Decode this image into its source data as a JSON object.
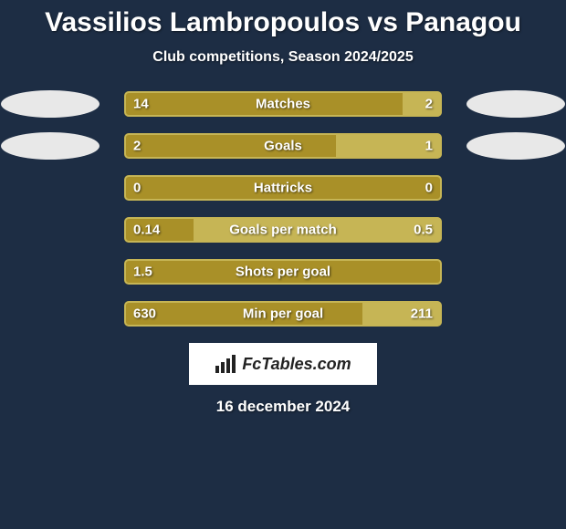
{
  "title": "Vassilios Lambropoulos vs Panagou",
  "subtitle": "Club competitions, Season 2024/2025",
  "date": "16 december 2024",
  "branding": "FcTables.com",
  "colors": {
    "background": "#1d2d44",
    "left_bar": "#a99028",
    "right_bar": "#c6b555",
    "left_ellipse": "#e8e8e8",
    "right_ellipse": "#e8e8e8",
    "branding_bg": "#ffffff",
    "branding_text": "#222222",
    "text": "#ffffff"
  },
  "rows": [
    {
      "metric": "Matches",
      "left_value": "14",
      "right_value": "2",
      "left_num": 14,
      "right_num": 2,
      "left_pct": 87.5,
      "right_pct": 12.5,
      "show_side_ellipses": true
    },
    {
      "metric": "Goals",
      "left_value": "2",
      "right_value": "1",
      "left_num": 2,
      "right_num": 1,
      "left_pct": 66.67,
      "right_pct": 33.33,
      "show_side_ellipses": true
    },
    {
      "metric": "Hattricks",
      "left_value": "0",
      "right_value": "0",
      "left_num": 0,
      "right_num": 0,
      "left_pct": 100,
      "right_pct": 0,
      "show_side_ellipses": false
    },
    {
      "metric": "Goals per match",
      "left_value": "0.14",
      "right_value": "0.5",
      "left_num": 0.14,
      "right_num": 0.5,
      "left_pct": 21.88,
      "right_pct": 78.12,
      "show_side_ellipses": false
    },
    {
      "metric": "Shots per goal",
      "left_value": "1.5",
      "right_value": "",
      "left_num": 1.5,
      "right_num": 0,
      "left_pct": 100,
      "right_pct": 0,
      "show_side_ellipses": false
    },
    {
      "metric": "Min per goal",
      "left_value": "630",
      "right_value": "211",
      "left_num": 630,
      "right_num": 211,
      "left_pct": 74.9,
      "right_pct": 25.1,
      "show_side_ellipses": false
    }
  ]
}
